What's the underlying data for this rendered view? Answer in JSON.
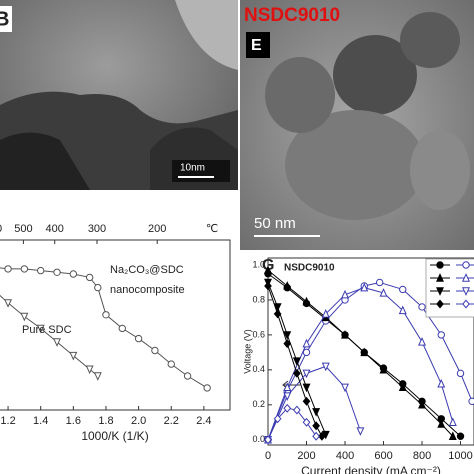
{
  "panels": {
    "B": {
      "label": "B",
      "scale_bar": "10nm"
    },
    "E": {
      "label": "E",
      "title": "NSDC9010",
      "scale_bar": "50 nm"
    }
  },
  "chart_data": [
    {
      "type": "line",
      "panel_label": null,
      "x_label": "1000/K (1/K)",
      "x2_label": "℃",
      "annotations": [
        "Na₂CO₃@SDC",
        "nanocomposite",
        "Pure SDC"
      ],
      "xlim": [
        1.12,
        2.56
      ],
      "xticks": [
        1.2,
        1.4,
        1.6,
        1.8,
        {
          "value": 2,
          "label": "2.0"
        },
        2.2,
        2.4
      ],
      "x2ticks": [
        {
          "value": 1.145,
          "label": "0"
        },
        {
          "value": 1.294,
          "label": "500"
        },
        {
          "value": 1.486,
          "label": "400"
        },
        {
          "value": 1.745,
          "label": "300"
        },
        {
          "value": 2.114,
          "label": "200"
        }
      ],
      "ylim": [
        0,
        1
      ],
      "series": [
        {
          "color": "#555555",
          "marker": "circle",
          "filled": false,
          "x": [
            1.12,
            1.2,
            1.3,
            1.4,
            1.5,
            1.6,
            1.7,
            1.75,
            1.8,
            1.9,
            2.0,
            2.1,
            2.2,
            2.3,
            2.42
          ],
          "values": [
            0.84,
            0.83,
            0.83,
            0.82,
            0.81,
            0.8,
            0.78,
            0.72,
            0.56,
            0.48,
            0.42,
            0.35,
            0.27,
            0.2,
            0.13
          ]
        },
        {
          "color": "#555555",
          "marker": "triangle-down",
          "filled": false,
          "x": [
            1.12,
            1.2,
            1.3,
            1.4,
            1.5,
            1.6,
            1.7,
            1.75
          ],
          "values": [
            0.7,
            0.63,
            0.55,
            0.48,
            0.4,
            0.32,
            0.24,
            0.2
          ]
        }
      ]
    },
    {
      "type": "line",
      "panel_label": "G",
      "title": "NSDC9010",
      "x_label": "Current density (mA cm⁻²)",
      "y_label": "Voltage (V)",
      "xlim": [
        0,
        1070
      ],
      "xticks": [
        0,
        200,
        400,
        600,
        800,
        1000
      ],
      "ylim": [
        -0.03,
        1.04
      ],
      "yticks": [
        {
          "value": 0,
          "label": "0.0"
        },
        0.2,
        0.4,
        0.6,
        0.8,
        {
          "value": 1,
          "label": "1.0"
        }
      ],
      "series": [
        {
          "color": "#000000",
          "marker": "circle",
          "filled": true,
          "x": [
            0,
            100,
            200,
            300,
            400,
            500,
            600,
            700,
            800,
            900,
            1000
          ],
          "values": [
            0.95,
            0.87,
            0.78,
            0.69,
            0.6,
            0.5,
            0.41,
            0.32,
            0.22,
            0.12,
            0.02
          ]
        },
        {
          "color": "#3b3bb0",
          "marker": "circle",
          "filled": false,
          "x": [
            0,
            100,
            200,
            300,
            400,
            500,
            580,
            700,
            800,
            900,
            1000,
            1060
          ],
          "values": [
            0,
            0.28,
            0.5,
            0.68,
            0.8,
            0.88,
            0.9,
            0.86,
            0.76,
            0.6,
            0.38,
            0.22
          ]
        },
        {
          "color": "#000000",
          "marker": "triangle",
          "filled": true,
          "x": [
            0,
            100,
            200,
            300,
            400,
            500,
            600,
            700,
            800,
            900,
            960
          ],
          "values": [
            0.97,
            0.88,
            0.79,
            0.7,
            0.6,
            0.5,
            0.4,
            0.3,
            0.2,
            0.09,
            0.02
          ]
        },
        {
          "color": "#3b3bb0",
          "marker": "triangle",
          "filled": false,
          "x": [
            0,
            100,
            200,
            300,
            400,
            500,
            600,
            700,
            800,
            900,
            960
          ],
          "values": [
            0,
            0.3,
            0.55,
            0.72,
            0.83,
            0.87,
            0.84,
            0.74,
            0.56,
            0.32,
            0.1
          ]
        },
        {
          "color": "#000000",
          "marker": "triangle-down",
          "filled": true,
          "x": [
            0,
            50,
            100,
            150,
            200,
            250,
            300
          ],
          "values": [
            0.9,
            0.76,
            0.6,
            0.45,
            0.3,
            0.16,
            0.03
          ]
        },
        {
          "color": "#3b3bb0",
          "marker": "triangle-down",
          "filled": false,
          "x": [
            0,
            100,
            200,
            300,
            400,
            480
          ],
          "values": [
            0,
            0.25,
            0.38,
            0.42,
            0.3,
            0.05
          ]
        },
        {
          "color": "#000000",
          "marker": "diamond",
          "filled": true,
          "x": [
            0,
            50,
            100,
            150,
            200,
            250,
            280
          ],
          "values": [
            0.88,
            0.72,
            0.55,
            0.38,
            0.22,
            0.08,
            0.02
          ]
        },
        {
          "color": "#3b3bb0",
          "marker": "diamond",
          "filled": false,
          "x": [
            0,
            50,
            100,
            150,
            200,
            250
          ],
          "values": [
            0,
            0.12,
            0.18,
            0.17,
            0.1,
            0.02
          ]
        }
      ]
    }
  ]
}
